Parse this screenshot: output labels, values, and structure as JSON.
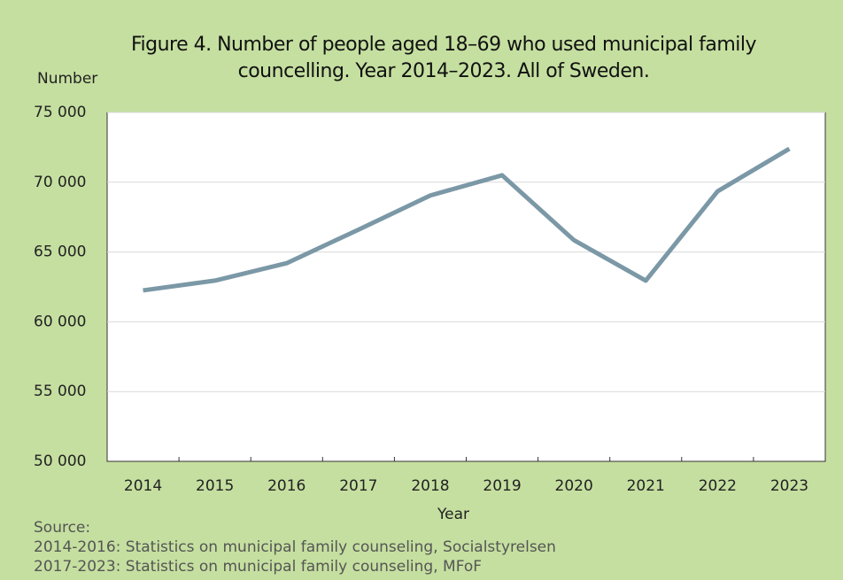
{
  "chart_data": {
    "type": "line",
    "title": "Figure 4. Number of people aged 18–69 who used municipal family councelling. Year 2014–2023. All of Sweden.",
    "y_label": "Number",
    "x_label": "Year",
    "source": [
      "Source:",
      "2014-2016: Statistics on municipal family counseling, Socialstyrelsen",
      "2017-2023: Statistics on municipal family counseling, MFoF"
    ],
    "categories": [
      "2014",
      "2015",
      "2016",
      "2017",
      "2018",
      "2019",
      "2020",
      "2021",
      "2022",
      "2023"
    ],
    "series": [
      {
        "name": "Number",
        "color": "#7b98a6",
        "values": [
          62250,
          62950,
          64200,
          66600,
          69050,
          70500,
          65850,
          62950,
          69350,
          72400
        ]
      }
    ],
    "ylim": [
      50000,
      75000
    ],
    "yticks": [
      {
        "value": 50000,
        "label": "50 000"
      },
      {
        "value": 55000,
        "label": "55 000"
      },
      {
        "value": 60000,
        "label": "60 000"
      },
      {
        "value": 65000,
        "label": "65 000"
      },
      {
        "value": 70000,
        "label": "70 000"
      },
      {
        "value": 75000,
        "label": "75 000"
      }
    ],
    "grid": true
  }
}
